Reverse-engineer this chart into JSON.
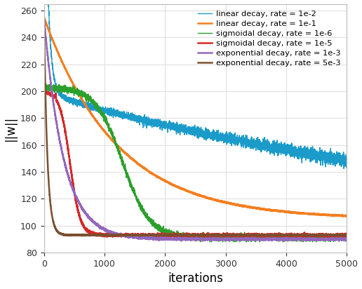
{
  "title": "",
  "xlabel": "iterations",
  "ylabel": "||w||",
  "xlim": [
    0,
    5000
  ],
  "ylim": [
    80,
    265
  ],
  "yticks": [
    80,
    100,
    120,
    140,
    160,
    180,
    200,
    220,
    240,
    260
  ],
  "xticks": [
    0,
    1000,
    2000,
    3000,
    4000,
    5000
  ],
  "n_iter": 5000,
  "figsize": [
    5.16,
    4.12
  ],
  "dpi": 100,
  "background_color": "#ffffff",
  "grid_color": "#e0e0e0",
  "legend_entries": [
    {
      "label": "linear decay, rate = 1e-2",
      "color": "#1a9bca",
      "lw": 1.0
    },
    {
      "label": "linear decay, rate = 1e-1",
      "color": "#f47f20",
      "lw": 1.8
    },
    {
      "label": "sigmoidal decay, rate = 1e-6",
      "color": "#2ca02c",
      "lw": 1.0
    },
    {
      "label": "sigmoidal decay, rate = 1e-5",
      "color": "#d62728",
      "lw": 1.8
    },
    {
      "label": "exponential decay, rate = 1e-3",
      "color": "#9467bd",
      "lw": 1.8
    },
    {
      "label": "exponential decay, rate = 5e-3",
      "color": "#7b4f2e",
      "lw": 1.8
    }
  ]
}
